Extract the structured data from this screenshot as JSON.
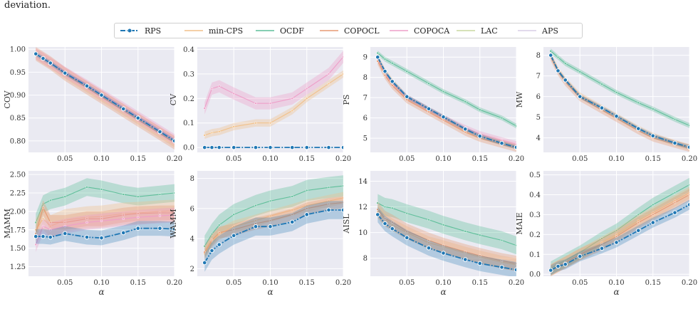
{
  "caption": "deviation.",
  "legend": [
    {
      "name": "RPS",
      "color": "#1f77b4"
    },
    {
      "name": "min-CPS",
      "color": "#f2c18a"
    },
    {
      "name": "OCDF",
      "color": "#5fbf9a"
    },
    {
      "name": "COPOCL",
      "color": "#e79a73"
    },
    {
      "name": "COPOCA",
      "color": "#ee9fc9"
    },
    {
      "name": "LAC",
      "color": "#c9d9a0"
    },
    {
      "name": "APS",
      "color": "#d8cde6"
    }
  ],
  "chart_data": [
    {
      "type": "line",
      "ylabel": "COV",
      "xlabel": "",
      "xlim": [
        0.0,
        0.2
      ],
      "ylim": [
        0.775,
        1.005
      ],
      "xticks": [
        "0.05",
        "0.10",
        "0.15",
        "0.20"
      ],
      "yticks": [
        "0.80",
        "0.85",
        "0.90",
        "0.95",
        "1.00"
      ],
      "x": [
        0.01,
        0.02,
        0.03,
        0.05,
        0.08,
        0.1,
        0.13,
        0.15,
        0.18,
        0.2
      ],
      "series": [
        {
          "name": "RPS",
          "values": [
            0.99,
            0.98,
            0.97,
            0.948,
            0.92,
            0.9,
            0.87,
            0.85,
            0.82,
            0.8
          ],
          "band": 0.005
        },
        {
          "name": "min-CPS",
          "values": [
            0.99,
            0.98,
            0.97,
            0.948,
            0.918,
            0.898,
            0.868,
            0.848,
            0.818,
            0.798
          ],
          "band": 0.012
        },
        {
          "name": "COPOCL",
          "values": [
            0.99,
            0.98,
            0.97,
            0.946,
            0.916,
            0.896,
            0.866,
            0.846,
            0.816,
            0.796
          ],
          "band": 0.015
        },
        {
          "name": "COPOCA",
          "values": [
            0.99,
            0.981,
            0.971,
            0.95,
            0.922,
            0.902,
            0.873,
            0.853,
            0.823,
            0.803
          ],
          "band": 0.012
        }
      ]
    },
    {
      "type": "line",
      "ylabel": "CV",
      "xlabel": "",
      "xlim": [
        0.0,
        0.2
      ],
      "ylim": [
        -0.02,
        0.41
      ],
      "xticks": [
        "0.05",
        "0.10",
        "0.15",
        "0.20"
      ],
      "yticks": [
        "0.0",
        "0.1",
        "0.2",
        "0.3",
        "0.4"
      ],
      "x": [
        0.01,
        0.02,
        0.03,
        0.05,
        0.08,
        0.1,
        0.13,
        0.15,
        0.18,
        0.2
      ],
      "series": [
        {
          "name": "RPS",
          "values": [
            0,
            0,
            0,
            0,
            0,
            0,
            0,
            0,
            0,
            0
          ],
          "band": 0
        },
        {
          "name": "min-CPS",
          "values": [
            0.05,
            0.06,
            0.065,
            0.085,
            0.1,
            0.1,
            0.15,
            0.2,
            0.26,
            0.3
          ],
          "band": 0.015
        },
        {
          "name": "COPOCA",
          "values": [
            0.16,
            0.24,
            0.25,
            0.22,
            0.18,
            0.18,
            0.2,
            0.24,
            0.3,
            0.37
          ],
          "band": 0.025
        }
      ]
    },
    {
      "type": "line",
      "ylabel": "PS",
      "xlabel": "",
      "xlim": [
        0.0,
        0.2
      ],
      "ylim": [
        4.3,
        9.5
      ],
      "xticks": [
        "0.05",
        "0.10",
        "0.15",
        "0.20"
      ],
      "yticks": [
        "5",
        "6",
        "7",
        "8",
        "9"
      ],
      "x": [
        0.01,
        0.02,
        0.03,
        0.05,
        0.08,
        0.1,
        0.13,
        0.15,
        0.18,
        0.2
      ],
      "series": [
        {
          "name": "OCDF",
          "values": [
            9.2,
            8.9,
            8.7,
            8.3,
            7.7,
            7.3,
            6.8,
            6.4,
            6.0,
            5.6
          ],
          "band": 0.12
        },
        {
          "name": "min-CPS",
          "values": [
            9.0,
            8.3,
            7.8,
            7.0,
            6.4,
            6.0,
            5.4,
            5.1,
            4.8,
            4.6
          ],
          "band": 0.15
        },
        {
          "name": "COPOCA",
          "values": [
            8.9,
            8.2,
            7.7,
            7.0,
            6.4,
            6.0,
            5.5,
            5.2,
            4.9,
            4.7
          ],
          "band": 0.15
        },
        {
          "name": "COPOCL",
          "values": [
            8.8,
            8.1,
            7.6,
            6.9,
            6.3,
            5.9,
            5.3,
            5.0,
            4.7,
            4.5
          ],
          "band": 0.18
        },
        {
          "name": "RPS",
          "values": [
            9.0,
            8.3,
            7.8,
            7.05,
            6.45,
            6.05,
            5.45,
            5.1,
            4.75,
            4.55
          ],
          "band": 0.1
        }
      ]
    },
    {
      "type": "line",
      "ylabel": "MW",
      "xlabel": "",
      "xlim": [
        0.0,
        0.2
      ],
      "ylim": [
        3.3,
        8.4
      ],
      "xticks": [
        "0.05",
        "0.10",
        "0.15",
        "0.20"
      ],
      "yticks": [
        "4",
        "5",
        "6",
        "7",
        "8"
      ],
      "x": [
        0.01,
        0.02,
        0.03,
        0.05,
        0.08,
        0.1,
        0.13,
        0.15,
        0.18,
        0.2
      ],
      "series": [
        {
          "name": "OCDF",
          "values": [
            8.2,
            7.9,
            7.6,
            7.2,
            6.6,
            6.2,
            5.7,
            5.4,
            4.9,
            4.6
          ],
          "band": 0.12
        },
        {
          "name": "min-CPS",
          "values": [
            8.0,
            7.3,
            6.8,
            6.05,
            5.45,
            5.05,
            4.45,
            4.1,
            3.75,
            3.55
          ],
          "band": 0.15
        },
        {
          "name": "COPOCL",
          "values": [
            7.9,
            7.2,
            6.7,
            5.95,
            5.35,
            4.95,
            4.35,
            4.0,
            3.7,
            3.5
          ],
          "band": 0.18
        },
        {
          "name": "RPS",
          "values": [
            8.0,
            7.25,
            6.8,
            6.0,
            5.45,
            5.05,
            4.45,
            4.1,
            3.75,
            3.55
          ],
          "band": 0.1
        }
      ]
    },
    {
      "type": "line",
      "ylabel": "MAMM",
      "xlabel": "α",
      "xlim": [
        0.0,
        0.2
      ],
      "ylim": [
        1.12,
        2.55
      ],
      "xticks": [
        "0.05",
        "0.10",
        "0.15",
        "0.20"
      ],
      "yticks": [
        "1.25",
        "1.50",
        "1.75",
        "2.00",
        "2.25",
        "2.50"
      ],
      "x": [
        0.01,
        0.02,
        0.03,
        0.05,
        0.08,
        0.1,
        0.13,
        0.15,
        0.18,
        0.2
      ],
      "series": [
        {
          "name": "OCDF",
          "values": [
            1.85,
            2.1,
            2.15,
            2.2,
            2.33,
            2.3,
            2.23,
            2.2,
            2.23,
            2.25
          ],
          "band": 0.12
        },
        {
          "name": "min-CPS",
          "values": [
            1.75,
            1.9,
            1.8,
            1.88,
            1.92,
            1.93,
            1.97,
            1.98,
            2.0,
            2.01
          ],
          "band": 0.15
        },
        {
          "name": "COPOCL",
          "values": [
            1.7,
            2.05,
            1.85,
            1.85,
            1.9,
            1.9,
            1.95,
            1.97,
            1.98,
            1.98
          ],
          "band": 0.1
        },
        {
          "name": "COPOCA",
          "values": [
            1.55,
            1.8,
            1.75,
            1.8,
            1.85,
            1.87,
            1.9,
            1.92,
            1.94,
            1.95
          ],
          "band": 0.1
        },
        {
          "name": "RPS",
          "values": [
            1.66,
            1.66,
            1.65,
            1.7,
            1.65,
            1.64,
            1.71,
            1.77,
            1.77,
            1.76
          ],
          "band": 0.1
        }
      ]
    },
    {
      "type": "line",
      "ylabel": "WAMM",
      "xlabel": "α",
      "xlim": [
        0.0,
        0.2
      ],
      "ylim": [
        1.5,
        8.5
      ],
      "xticks": [
        "0.05",
        "0.10",
        "0.15",
        "0.20"
      ],
      "yticks": [
        "2",
        "4",
        "6",
        "8"
      ],
      "x": [
        0.01,
        0.02,
        0.03,
        0.05,
        0.08,
        0.1,
        0.13,
        0.15,
        0.18,
        0.2
      ],
      "series": [
        {
          "name": "OCDF",
          "values": [
            3.5,
            4.3,
            4.9,
            5.6,
            6.2,
            6.5,
            6.8,
            7.2,
            7.4,
            7.5
          ],
          "band": 0.7
        },
        {
          "name": "min-CPS",
          "values": [
            3.0,
            3.8,
            4.3,
            4.8,
            5.2,
            5.5,
            5.9,
            6.2,
            6.5,
            6.7
          ],
          "band": 0.4
        },
        {
          "name": "COPOCL",
          "values": [
            3.1,
            3.9,
            4.4,
            4.6,
            5.0,
            5.2,
            5.6,
            6.0,
            6.3,
            6.4
          ],
          "band": 0.4
        },
        {
          "name": "RPS",
          "values": [
            2.4,
            3.2,
            3.6,
            4.2,
            4.8,
            4.8,
            5.1,
            5.6,
            5.9,
            5.9
          ],
          "band": 0.6
        }
      ]
    },
    {
      "type": "line",
      "ylabel": "AISL",
      "xlabel": "α",
      "xlim": [
        0.0,
        0.2
      ],
      "ylim": [
        6.6,
        14.8
      ],
      "xticks": [
        "0.05",
        "0.10",
        "0.15",
        "0.20"
      ],
      "yticks": [
        "8",
        "10",
        "12",
        "14"
      ],
      "x": [
        0.01,
        0.02,
        0.03,
        0.05,
        0.08,
        0.1,
        0.13,
        0.15,
        0.18,
        0.2
      ],
      "series": [
        {
          "name": "OCDF",
          "values": [
            12.3,
            12.0,
            11.9,
            11.5,
            11.0,
            10.6,
            10.1,
            9.8,
            9.4,
            9.0
          ],
          "band": 0.7
        },
        {
          "name": "min-CPS",
          "values": [
            11.6,
            11.0,
            10.6,
            10.0,
            9.2,
            8.9,
            8.4,
            8.1,
            7.7,
            7.5
          ],
          "band": 0.5
        },
        {
          "name": "COPOCL",
          "values": [
            11.8,
            11.1,
            10.8,
            10.1,
            9.4,
            9.0,
            8.5,
            8.2,
            7.8,
            7.6
          ],
          "band": 0.6
        },
        {
          "name": "RPS",
          "values": [
            11.4,
            10.7,
            10.3,
            9.6,
            8.8,
            8.4,
            7.9,
            7.6,
            7.3,
            7.1
          ],
          "band": 0.6
        }
      ]
    },
    {
      "type": "line",
      "ylabel": "MAIE",
      "xlabel": "α",
      "xlim": [
        0.0,
        0.2
      ],
      "ylim": [
        -0.01,
        0.52
      ],
      "xticks": [
        "0.05",
        "0.10",
        "0.15",
        "0.20"
      ],
      "yticks": [
        "0.0",
        "0.1",
        "0.2",
        "0.3",
        "0.4",
        "0.5"
      ],
      "x": [
        0.01,
        0.02,
        0.03,
        0.05,
        0.08,
        0.1,
        0.13,
        0.15,
        0.18,
        0.2
      ],
      "series": [
        {
          "name": "OCDF",
          "values": [
            0.03,
            0.05,
            0.07,
            0.11,
            0.18,
            0.22,
            0.3,
            0.35,
            0.41,
            0.45
          ],
          "band": 0.035
        },
        {
          "name": "min-CPS",
          "values": [
            0.02,
            0.04,
            0.06,
            0.1,
            0.16,
            0.2,
            0.27,
            0.31,
            0.37,
            0.41
          ],
          "band": 0.03
        },
        {
          "name": "COPOCL",
          "values": [
            0.02,
            0.04,
            0.06,
            0.1,
            0.15,
            0.19,
            0.26,
            0.3,
            0.36,
            0.4
          ],
          "band": 0.03
        },
        {
          "name": "RPS",
          "values": [
            0.02,
            0.04,
            0.05,
            0.09,
            0.13,
            0.16,
            0.22,
            0.26,
            0.31,
            0.35
          ],
          "band": 0.025
        }
      ]
    }
  ]
}
